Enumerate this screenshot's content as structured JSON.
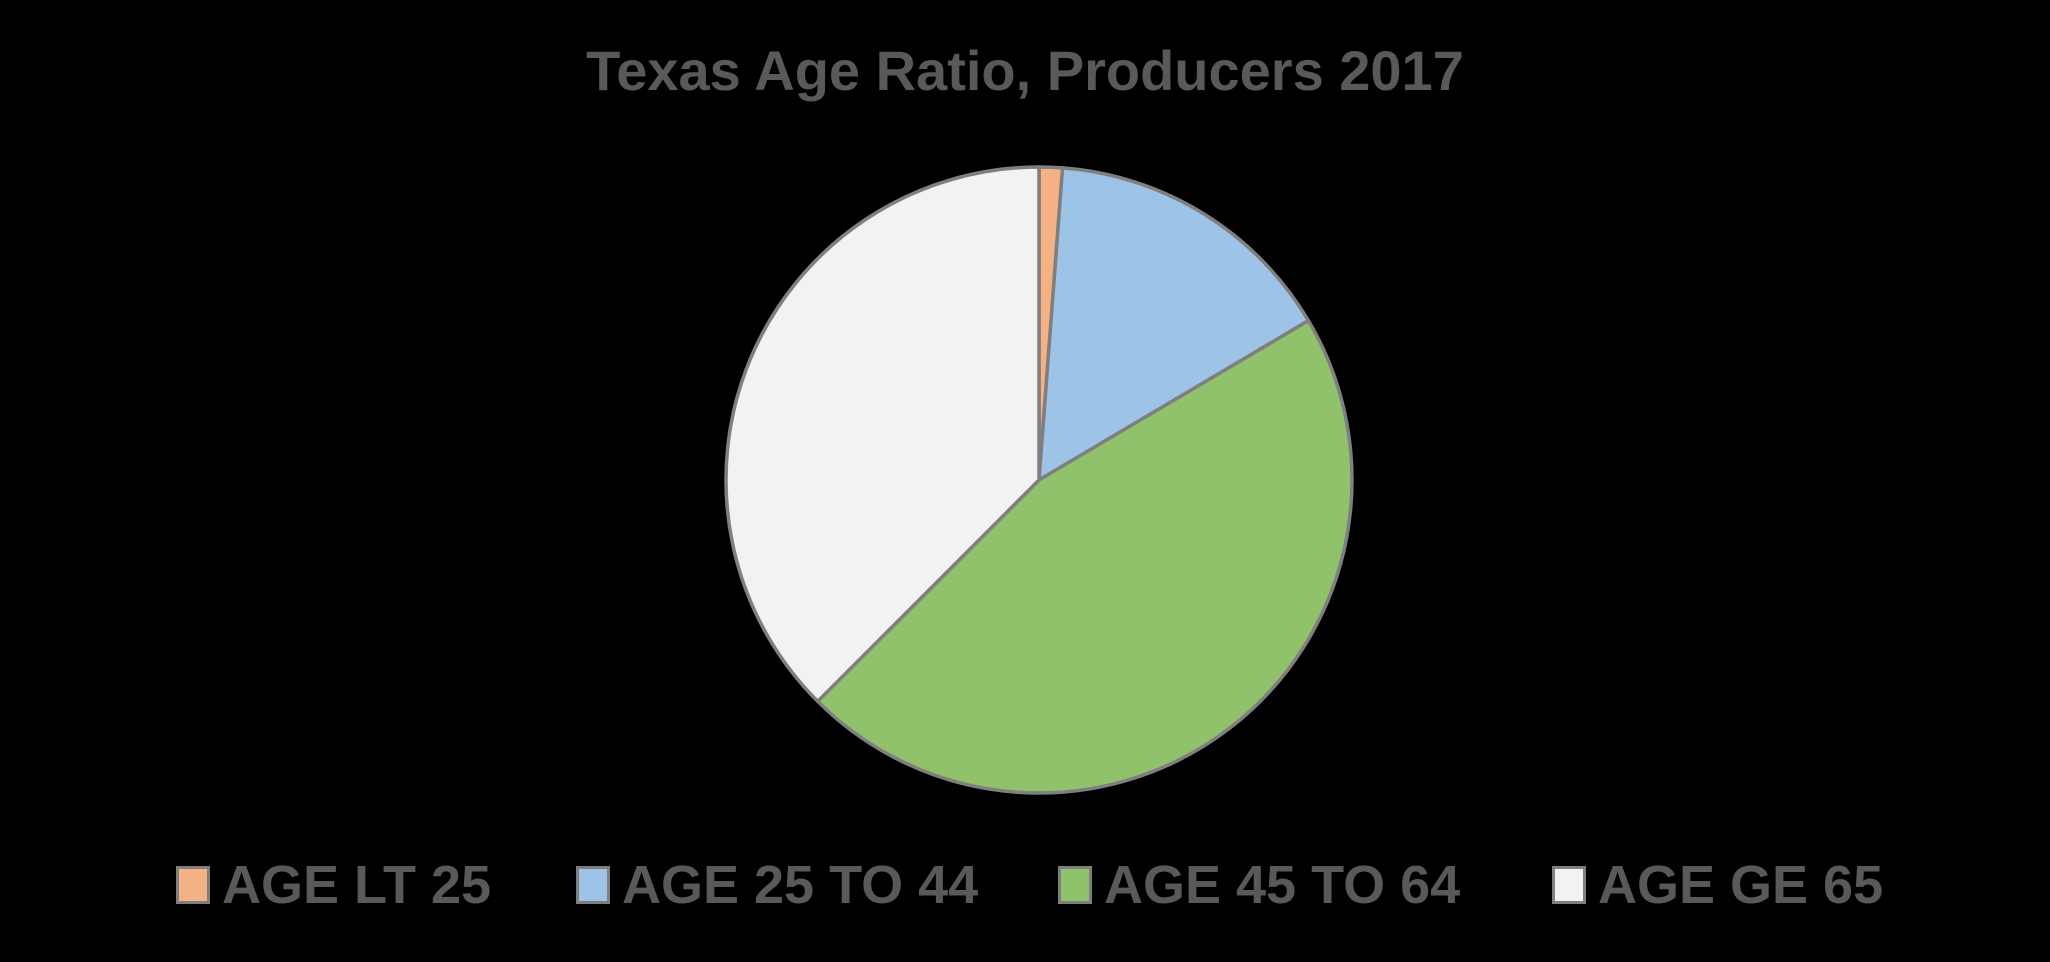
{
  "chart_data": {
    "type": "pie",
    "title": "Texas Age Ratio, Producers 2017",
    "categories": [
      "AGE LT 25",
      "AGE 25 TO 44",
      "AGE 45 TO 64",
      "AGE GE 65"
    ],
    "values": [
      1.2,
      15.3,
      46.0,
      37.5
    ],
    "colors": [
      "#f4b183",
      "#9dc3e6",
      "#8fc26a",
      "#f2f2f2"
    ],
    "border_color": "#7f7f7f",
    "start_angle_deg": 0,
    "direction": "clockwise",
    "legend_position": "bottom"
  }
}
